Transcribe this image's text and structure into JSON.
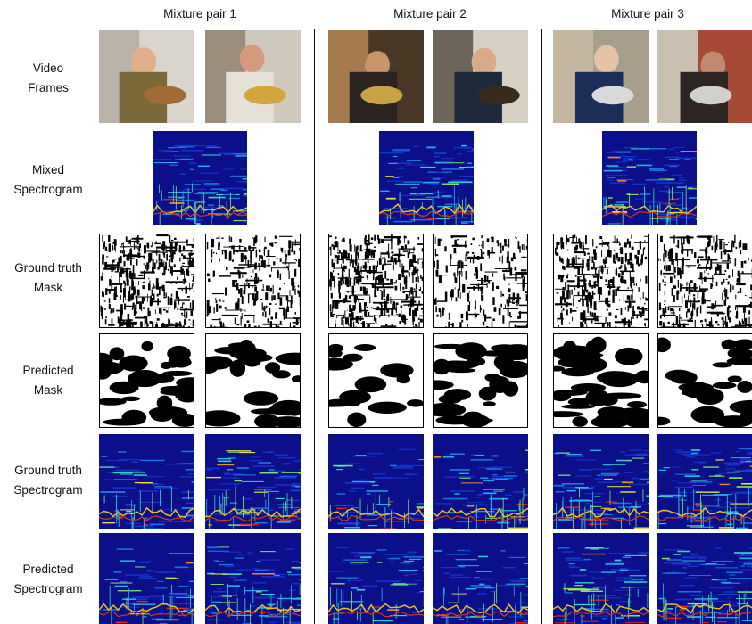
{
  "columns": [
    "Mixture pair 1",
    "Mixture pair 2",
    "Mixture pair 3"
  ],
  "rows": [
    {
      "line1": "Video",
      "line2": "Frames"
    },
    {
      "line1": "Mixed",
      "line2": "Spectrogram"
    },
    {
      "line1": "Ground truth",
      "line2": "Mask"
    },
    {
      "line1": "Predicted",
      "line2": "Mask"
    },
    {
      "line1": "Ground truth",
      "line2": "Spectrogram"
    },
    {
      "line1": "Predicted",
      "line2": "Spectrogram"
    }
  ],
  "video_frames": [
    [
      "man playing acoustic guitar",
      "man playing trumpet"
    ],
    [
      "girl playing tuba",
      "man playing erhu"
    ],
    [
      "boy playing trumpet",
      "woman playing accordion"
    ]
  ],
  "colors": {
    "spectrogram_background": "#0b0f8a",
    "mask_foreground": "#000000",
    "mask_background": "#ffffff",
    "divider": "#111111"
  }
}
